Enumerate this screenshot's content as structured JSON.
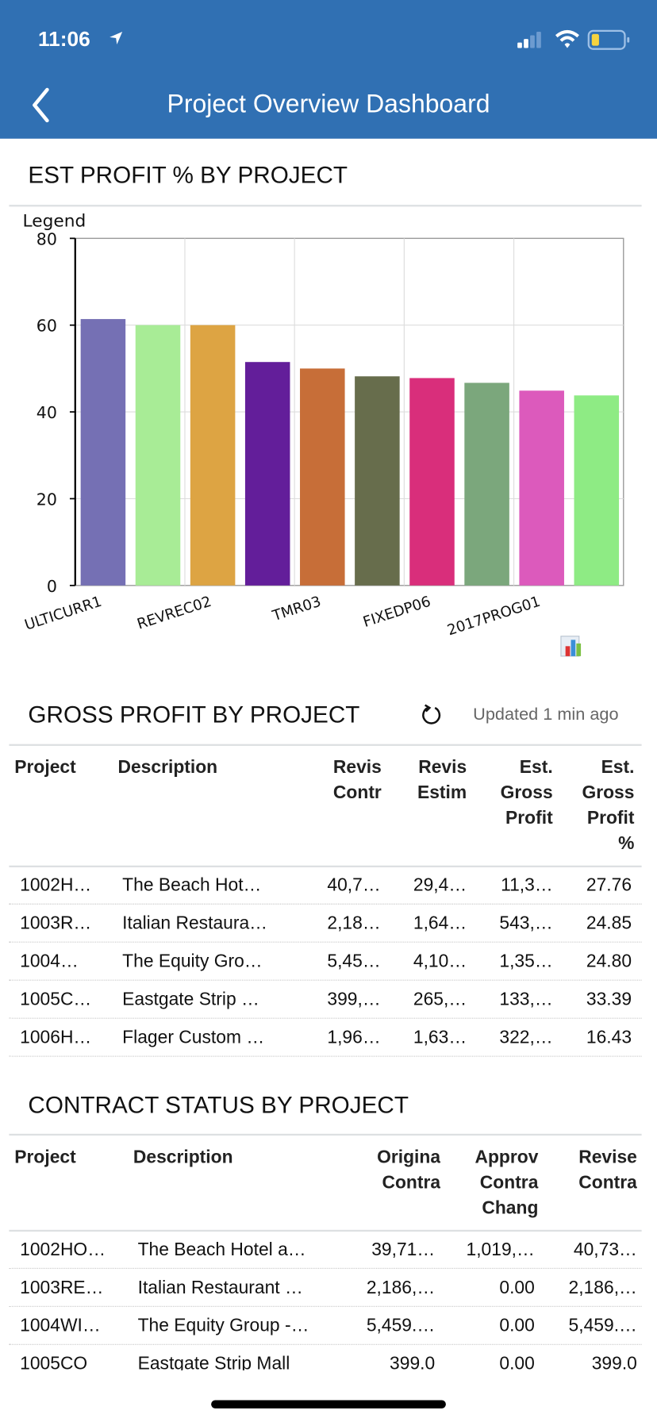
{
  "status_bar": {
    "time": "11:06",
    "location_icon": "location-arrow-icon",
    "signal_icon": "cellular-signal-icon",
    "wifi_icon": "wifi-icon",
    "battery_icon": "battery-low-icon",
    "battery_color": "#F5D33F"
  },
  "header": {
    "title": "Project Overview Dashboard",
    "back_icon": "chevron-left-icon",
    "color": "#3070B3"
  },
  "profit_chart_section": {
    "title": "EST PROFIT % BY PROJECT",
    "legend_label": "Legend",
    "chart_icon": "bar-chart-icon"
  },
  "chart_data": {
    "type": "bar",
    "title": "",
    "xlabel": "",
    "ylabel": "",
    "ylim": [
      0,
      80
    ],
    "yticks": [
      "0",
      "20",
      "40",
      "60",
      "80"
    ],
    "grid": true,
    "categories": [
      "ULTICURR1",
      "",
      "REVREC02",
      "",
      "TMR03",
      "",
      "FIXEDP06",
      "",
      "2017PROG01",
      ""
    ],
    "values": [
      61.4,
      60.0,
      60.0,
      51.5,
      50.0,
      48.2,
      47.8,
      46.7,
      44.9,
      43.8
    ],
    "colors": [
      "#7570B4",
      "#A8EC96",
      "#DDA443",
      "#631E9A",
      "#C76E38",
      "#676D4C",
      "#D92E7B",
      "#7BA77C",
      "#DC5ABC",
      "#8EEB84"
    ]
  },
  "gross_profit": {
    "title": "GROSS PROFIT BY PROJECT",
    "refresh_icon": "refresh-icon",
    "updated": "Updated 1 min ago",
    "columns": [
      "Project",
      "Description",
      "Revis\nContr",
      "Revis\nEstim",
      "Est.\nGross\nProfit",
      "Est.\nGross\nProfit\n%"
    ],
    "rows": [
      [
        "1002H…",
        "The Beach Hot…",
        "40,7…",
        "29,4…",
        "11,3…",
        "27.76"
      ],
      [
        "1003R…",
        "Italian Restaura…",
        "2,18…",
        "1,64…",
        "543,…",
        "24.85"
      ],
      [
        "1004…",
        "The Equity Gro…",
        "5,45…",
        "4,10…",
        "1,35…",
        "24.80"
      ],
      [
        "1005C…",
        "Eastgate Strip …",
        "399,…",
        "265,…",
        "133,…",
        "33.39"
      ],
      [
        "1006H…",
        "Flager Custom …",
        "1,96…",
        "1,63…",
        "322,…",
        "16.43"
      ]
    ]
  },
  "contract_status": {
    "title": "CONTRACT STATUS BY PROJECT",
    "columns": [
      "Project",
      "Description",
      "Origina\nContra",
      "Approv\nContra\nChang",
      "Revise\nContra"
    ],
    "rows": [
      [
        "1002HO…",
        "The Beach Hotel a…",
        "39,71…",
        "1,019,…",
        "40,73…"
      ],
      [
        "1003RE…",
        "Italian Restaurant …",
        "2,186,…",
        "0.00",
        "2,186,…"
      ],
      [
        "1004WI…",
        "The Equity Group -…",
        "5,459.…",
        "0.00",
        "5,459.…"
      ],
      [
        "1005CO",
        "Eastgate Strip Mall",
        "399.0",
        "0.00",
        "399.0"
      ]
    ]
  }
}
